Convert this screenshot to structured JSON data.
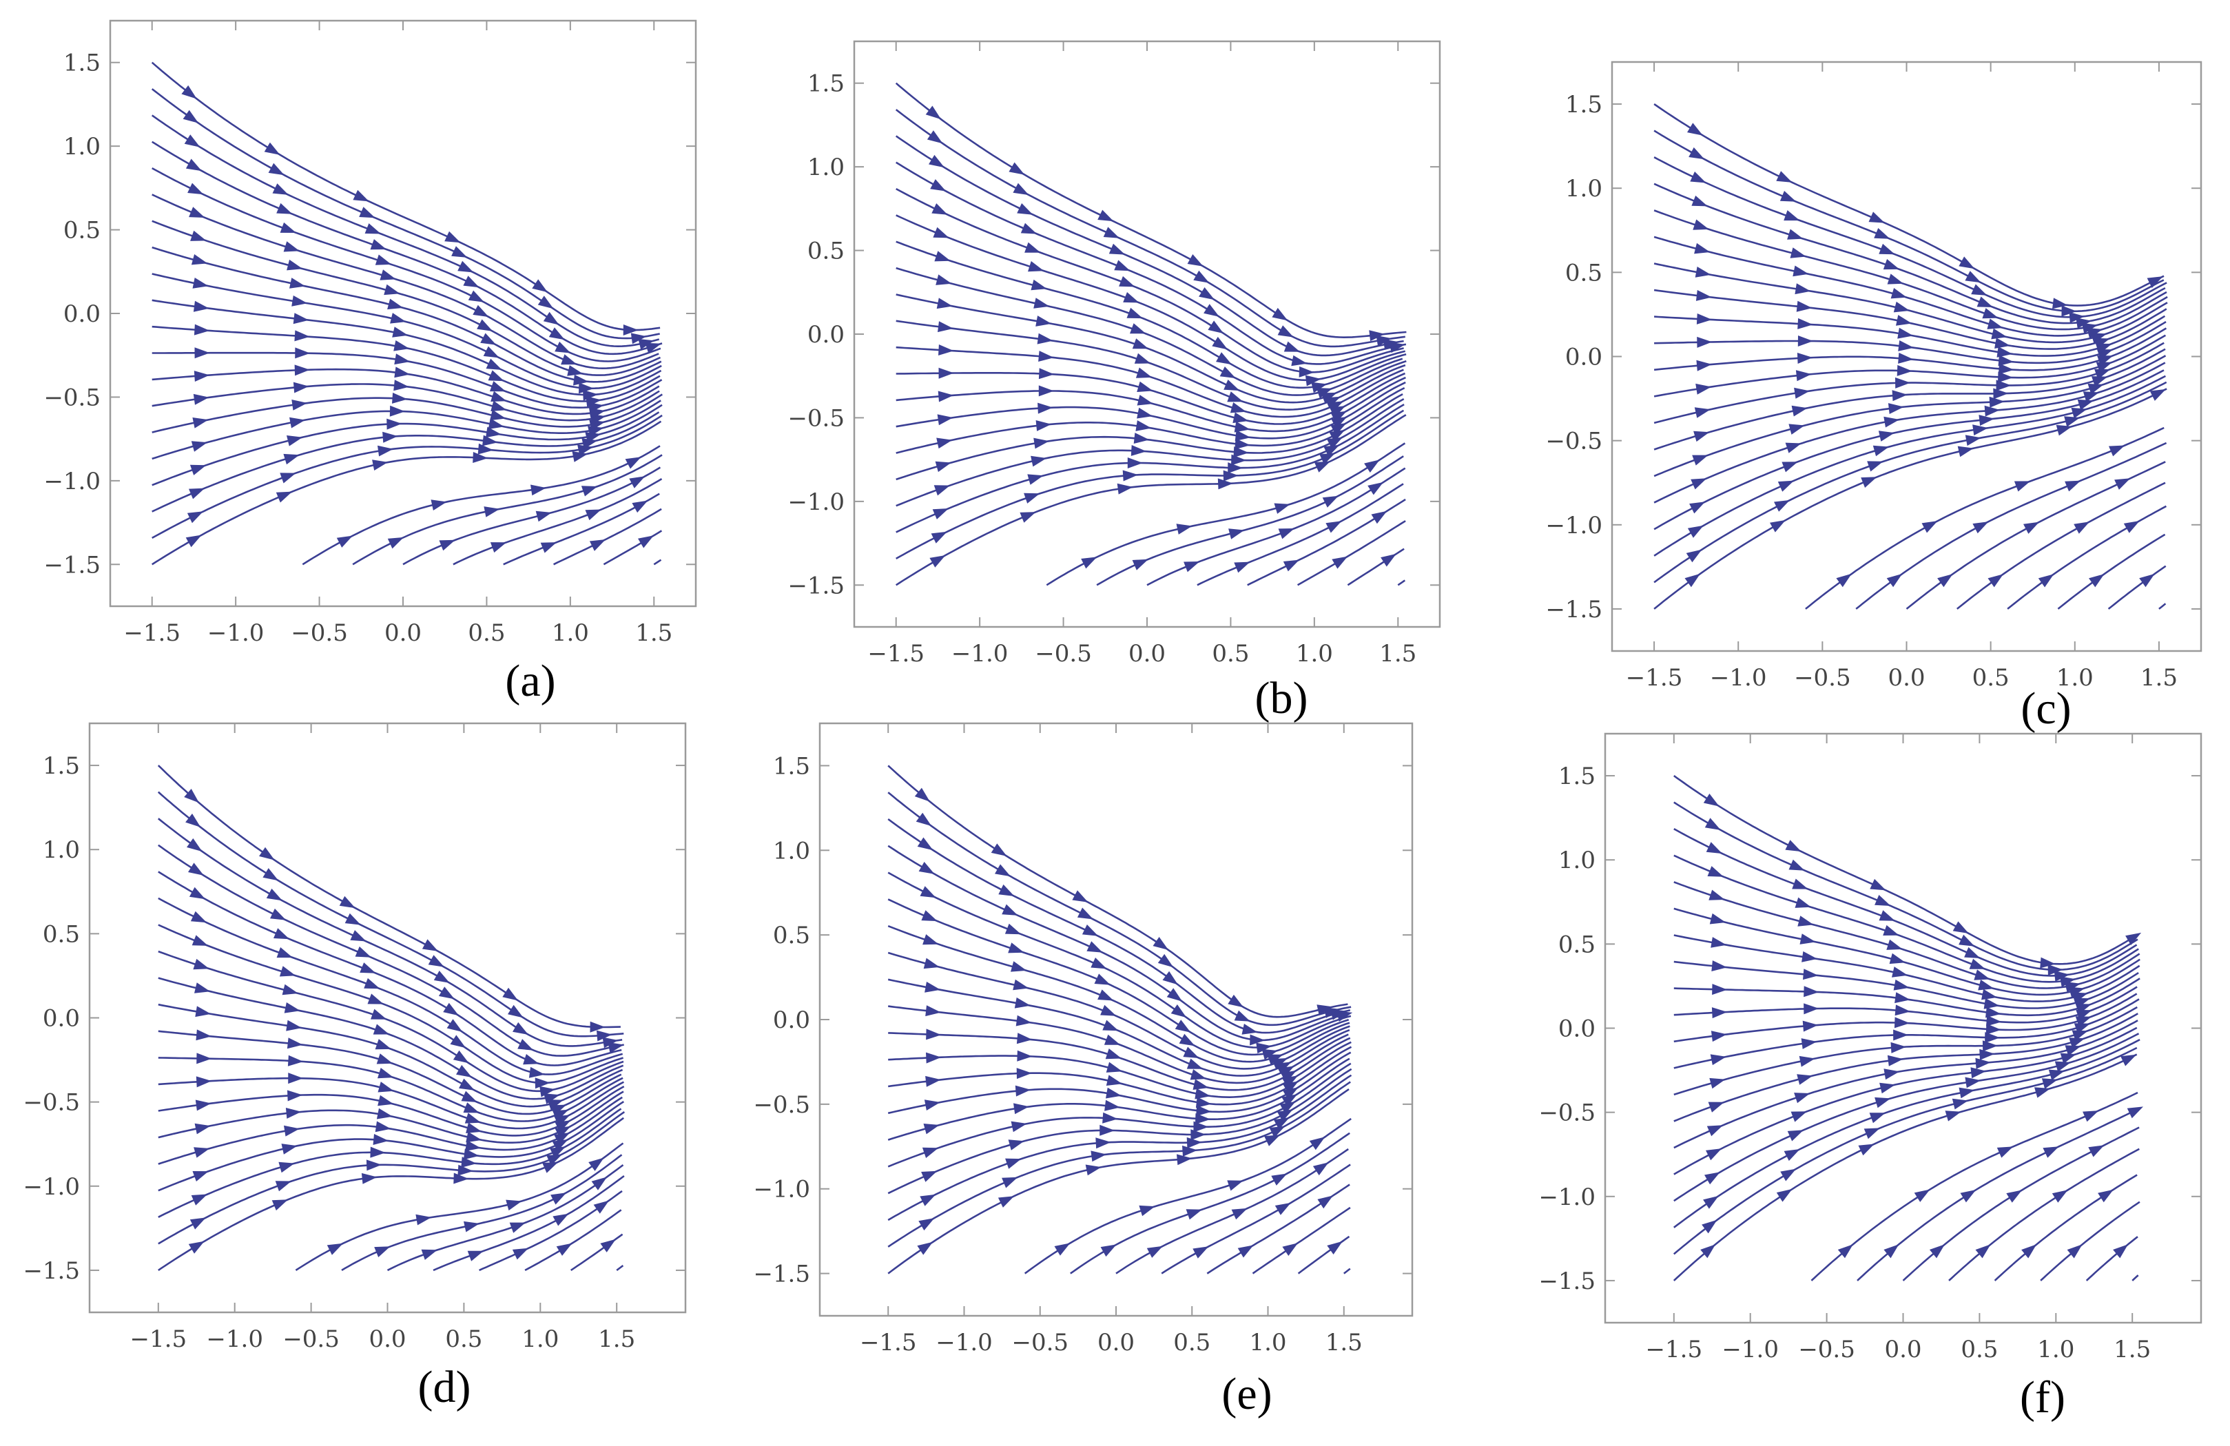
{
  "figure": {
    "type": "stream-plot-grid",
    "stream_color": "#3b3f94",
    "frame_color": "#9a9a9a"
  },
  "chart_data": [
    {
      "type": "streamplot",
      "panel_label": "(a)",
      "xticks": [
        "−1.5",
        "−1.0",
        "−0.5",
        "0.0",
        "0.5",
        "1.0",
        "1.5"
      ],
      "yticks": [
        "−1.5",
        "−1.0",
        "−0.5",
        "0.0",
        "0.5",
        "1.0",
        "1.5"
      ],
      "xlim": [
        -1.75,
        1.75
      ],
      "ylim": [
        -1.75,
        1.75
      ],
      "field": [
        1.05,
        -0.55
      ]
    },
    {
      "type": "streamplot",
      "panel_label": "(b)",
      "xticks": [
        "−1.5",
        "−1.0",
        "−0.5",
        "0.0",
        "0.5",
        "1.0",
        "1.5"
      ],
      "yticks": [
        "−1.5",
        "−1.0",
        "−0.5",
        "0.0",
        "0.5",
        "1.0",
        "1.5"
      ],
      "xlim": [
        -1.75,
        1.75
      ],
      "ylim": [
        -1.75,
        1.75
      ],
      "field": [
        0.8,
        -0.5
      ]
    },
    {
      "type": "streamplot",
      "panel_label": "(c)",
      "xticks": [
        "−1.5",
        "−1.0",
        "−0.5",
        "0.0",
        "0.5",
        "1.0",
        "1.5"
      ],
      "yticks": [
        "−1.5",
        "−1.0",
        "−0.5",
        "0.0",
        "0.5",
        "1.0",
        "1.5"
      ],
      "xlim": [
        -1.75,
        1.75
      ],
      "ylim": [
        -1.75,
        1.75
      ],
      "field": [
        1.0,
        0.3
      ]
    },
    {
      "type": "streamplot",
      "panel_label": "(d)",
      "xticks": [
        "−1.5",
        "−1.0",
        "−0.5",
        "0.0",
        "0.5",
        "1.0",
        "1.5"
      ],
      "yticks": [
        "−1.5",
        "−1.0",
        "−0.5",
        "0.0",
        "0.5",
        "1.0",
        "1.5"
      ],
      "xlim": [
        -1.95,
        1.95
      ],
      "ylim": [
        -1.75,
        1.75
      ],
      "field": [
        0.85,
        -0.65
      ]
    },
    {
      "type": "streamplot",
      "panel_label": "(e)",
      "xticks": [
        "−1.5",
        "−1.0",
        "−0.5",
        "0.0",
        "0.5",
        "1.0",
        "1.5"
      ],
      "yticks": [
        "−1.5",
        "−1.0",
        "−0.5",
        "0.0",
        "0.5",
        "1.0",
        "1.5"
      ],
      "xlim": [
        -1.95,
        1.95
      ],
      "ylim": [
        -1.75,
        1.75
      ],
      "field": [
        0.8,
        -0.35
      ]
    },
    {
      "type": "streamplot",
      "panel_label": "(f)",
      "xticks": [
        "−1.5",
        "−1.0",
        "−0.5",
        "0.0",
        "0.5",
        "1.0",
        "1.5"
      ],
      "yticks": [
        "−1.5",
        "−1.0",
        "−0.5",
        "0.0",
        "0.5",
        "1.0",
        "1.5"
      ],
      "xlim": [
        -1.95,
        1.95
      ],
      "ylim": [
        -1.75,
        1.75
      ],
      "field": [
        1.05,
        0.45
      ]
    }
  ]
}
